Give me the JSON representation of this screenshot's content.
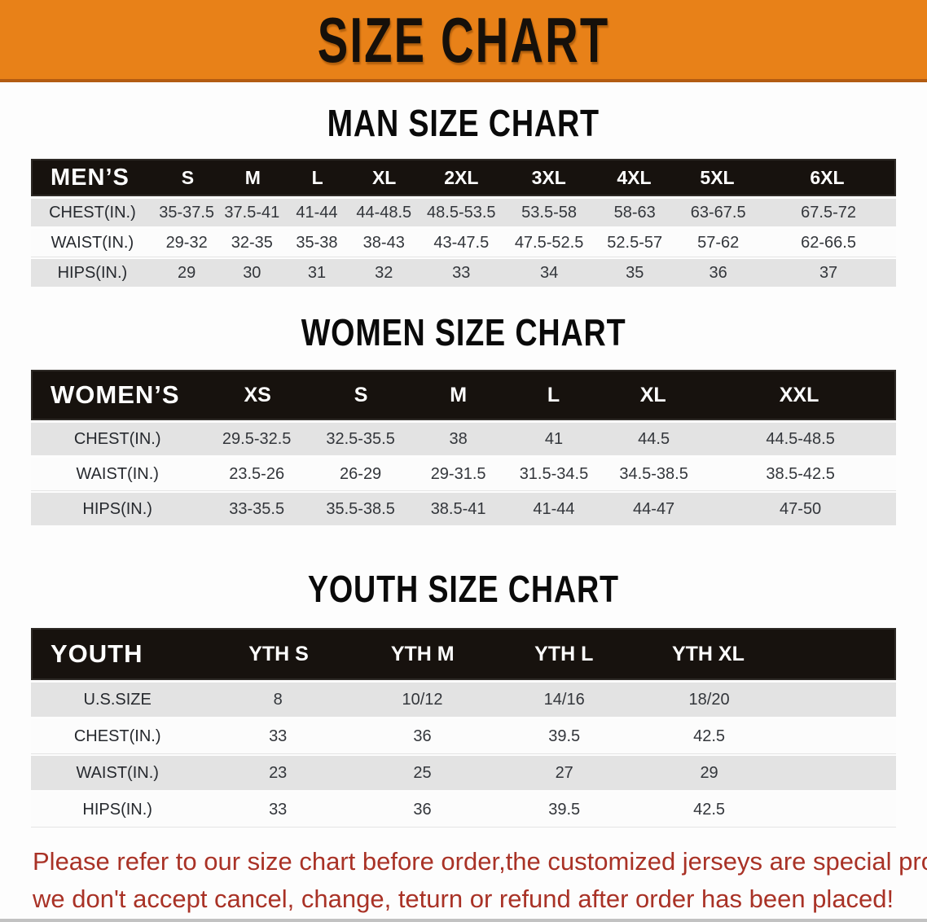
{
  "banner": {
    "title": "SIZE CHART",
    "bg_color": "#E88118",
    "border_color": "#B35C12",
    "text_color": "#16100A"
  },
  "sections": {
    "men": {
      "heading": "MAN SIZE CHART",
      "group_label": "MEN’S",
      "columns": [
        "S",
        "M",
        "L",
        "XL",
        "2XL",
        "3XL",
        "4XL",
        "5XL",
        "6XL"
      ],
      "rows": [
        {
          "label": "CHEST(IN.)",
          "values": [
            "35-37.5",
            "37.5-41",
            "41-44",
            "44-48.5",
            "48.5-53.5",
            "53.5-58",
            "58-63",
            "63-67.5",
            "67.5-72"
          ]
        },
        {
          "label": "WAIST(IN.)",
          "values": [
            "29-32",
            "32-35",
            "35-38",
            "38-43",
            "43-47.5",
            "47.5-52.5",
            "52.5-57",
            "57-62",
            "62-66.5"
          ]
        },
        {
          "label": "HIPS(IN.)",
          "values": [
            "29",
            "30",
            "31",
            "32",
            "33",
            "34",
            "35",
            "36",
            "37"
          ]
        }
      ]
    },
    "women": {
      "heading": "WOMEN SIZE CHART",
      "group_label": "WOMEN’S",
      "columns": [
        "XS",
        "S",
        "M",
        "L",
        "XL",
        "XXL"
      ],
      "rows": [
        {
          "label": "CHEST(IN.)",
          "values": [
            "29.5-32.5",
            "32.5-35.5",
            "38",
            "41",
            "44.5",
            "44.5-48.5"
          ]
        },
        {
          "label": "WAIST(IN.)",
          "values": [
            "23.5-26",
            "26-29",
            "29-31.5",
            "31.5-34.5",
            "34.5-38.5",
            "38.5-42.5"
          ]
        },
        {
          "label": "HIPS(IN.)",
          "values": [
            "33-35.5",
            "35.5-38.5",
            "38.5-41",
            "41-44",
            "44-47",
            "47-50"
          ]
        }
      ]
    },
    "youth": {
      "heading": "YOUTH SIZE CHART",
      "group_label": "YOUTH",
      "columns": [
        "YTH S",
        "YTH M",
        "YTH L",
        "YTH XL"
      ],
      "rows": [
        {
          "label": "U.S.SIZE",
          "values": [
            "8",
            "10/12",
            "14/16",
            "18/20"
          ]
        },
        {
          "label": "CHEST(IN.)",
          "values": [
            "33",
            "36",
            "39.5",
            "42.5"
          ]
        },
        {
          "label": "WAIST(IN.)",
          "values": [
            "23",
            "25",
            "27",
            "29"
          ]
        },
        {
          "label": "HIPS(IN.)",
          "values": [
            "33",
            "36",
            "39.5",
            "42.5"
          ]
        }
      ]
    }
  },
  "disclaimer": {
    "line1": "Please refer to our size chart before order,the customized jerseys are special products,",
    "line2": "we don't accept cancel, change, teturn or refund after order has been placed!",
    "color": "#A93226"
  },
  "colors": {
    "table_header_bar": "#17120E",
    "row_stripe": "#E3E3E3",
    "row_plain": "#FCFCFC",
    "value_text": "#33363B"
  }
}
